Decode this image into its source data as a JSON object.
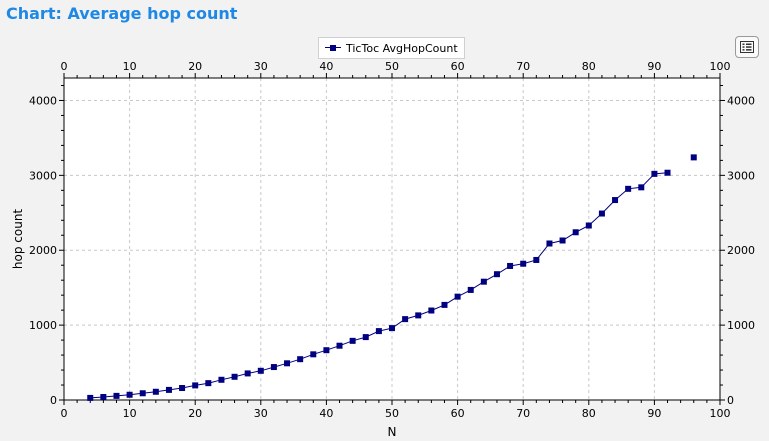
{
  "page_title": "Chart: Average hop count",
  "options_button": {
    "icon": "list-options-icon"
  },
  "chart_data": {
    "type": "line",
    "xlabel": "N",
    "ylabel": "hop count",
    "xlim": [
      0,
      100
    ],
    "ylim": [
      0,
      4300
    ],
    "x_ticks": [
      0,
      10,
      20,
      30,
      40,
      50,
      60,
      70,
      80,
      90,
      100
    ],
    "y_ticks": [
      0,
      1000,
      2000,
      3000,
      4000
    ],
    "grid": true,
    "legend_position": "top-center",
    "series": [
      {
        "name": "TicToc AvgHopCount",
        "color": "#000080",
        "marker": "square",
        "points": [
          [
            4,
            28
          ],
          [
            6,
            40
          ],
          [
            8,
            55
          ],
          [
            10,
            70
          ],
          [
            12,
            90
          ],
          [
            14,
            110
          ],
          [
            16,
            135
          ],
          [
            18,
            160
          ],
          [
            20,
            195
          ],
          [
            22,
            225
          ],
          [
            24,
            270
          ],
          [
            26,
            310
          ],
          [
            28,
            355
          ],
          [
            30,
            390
          ],
          [
            32,
            440
          ],
          [
            34,
            490
          ],
          [
            36,
            545
          ],
          [
            38,
            610
          ],
          [
            40,
            665
          ],
          [
            42,
            725
          ],
          [
            44,
            790
          ],
          [
            46,
            840
          ],
          [
            48,
            920
          ],
          [
            50,
            960
          ],
          [
            52,
            1080
          ],
          [
            54,
            1130
          ],
          [
            56,
            1195
          ],
          [
            58,
            1270
          ],
          [
            60,
            1380
          ],
          [
            62,
            1470
          ],
          [
            64,
            1580
          ],
          [
            66,
            1680
          ],
          [
            68,
            1790
          ],
          [
            70,
            1820
          ],
          [
            72,
            1870
          ],
          [
            74,
            2090
          ],
          [
            76,
            2130
          ],
          [
            78,
            2240
          ],
          [
            80,
            2330
          ],
          [
            82,
            2490
          ],
          [
            84,
            2670
          ],
          [
            86,
            2820
          ],
          [
            88,
            2840
          ],
          [
            90,
            3020
          ],
          [
            92,
            3035
          ]
        ],
        "isolated_points": [
          [
            96,
            3240
          ]
        ]
      }
    ]
  }
}
